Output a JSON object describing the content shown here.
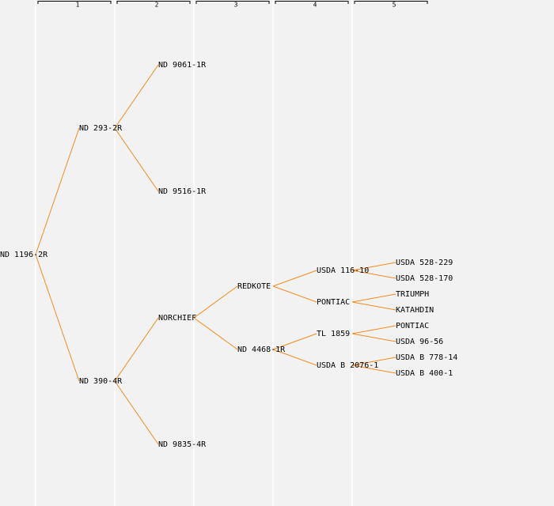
{
  "columns": [
    "1",
    "2",
    "3",
    "4",
    "5"
  ],
  "tree": {
    "label": "ND 1196-2R",
    "children": [
      {
        "label": "ND 293-2R",
        "children": [
          {
            "label": "ND 9061-1R"
          },
          {
            "label": "ND 9516-1R"
          }
        ]
      },
      {
        "label": "ND 390-4R",
        "children": [
          {
            "label": "NORCHIEF",
            "children": [
              {
                "label": "REDKOTE",
                "children": [
                  {
                    "label": "USDA 116-10",
                    "children": [
                      {
                        "label": "USDA 528-229"
                      },
                      {
                        "label": "USDA 528-170"
                      }
                    ]
                  },
                  {
                    "label": "PONTIAC",
                    "children": [
                      {
                        "label": "TRIUMPH"
                      },
                      {
                        "label": "KATAHDIN"
                      }
                    ]
                  }
                ]
              },
              {
                "label": "ND 4468-1R",
                "children": [
                  {
                    "label": "TL 1859",
                    "children": [
                      {
                        "label": "PONTIAC"
                      },
                      {
                        "label": "USDA 96-56"
                      }
                    ]
                  },
                  {
                    "label": "USDA B 2076-1",
                    "children": [
                      {
                        "label": "USDA B 778-14"
                      },
                      {
                        "label": "USDA B 400-1"
                      }
                    ]
                  }
                ]
              }
            ]
          },
          {
            "label": "ND 9835-4R"
          }
        ]
      }
    ]
  }
}
